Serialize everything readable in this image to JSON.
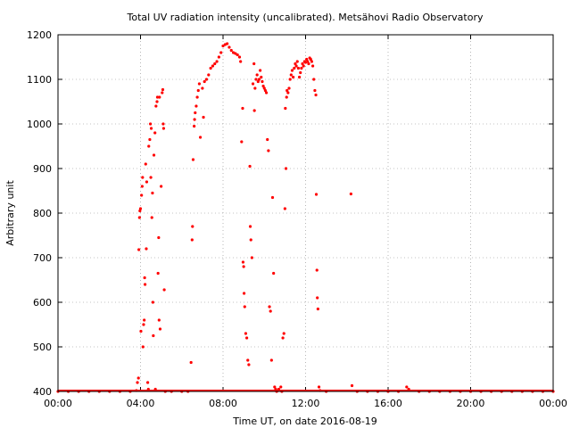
{
  "chart_data": {
    "type": "scatter",
    "title": "Total UV radiation intensity (uncalibrated). Metsähovi Radio Observatory",
    "xlabel": "Time UT, on date 2016-08-19",
    "ylabel": "Arbitrary unit",
    "xlim": [
      "00:00",
      "24:00"
    ],
    "ylim": [
      400,
      1200
    ],
    "x_ticks": [
      "00:00",
      "04:00",
      "08:00",
      "12:00",
      "16:00",
      "20:00",
      "00:00"
    ],
    "y_ticks": [
      "400",
      "500",
      "600",
      "700",
      "800",
      "900",
      "1000",
      "1100",
      "1200"
    ],
    "grid": true,
    "grid_style": "dotted",
    "marker_color": "#ff0000",
    "x_unit": "hours UT",
    "series": [
      {
        "values": [
          [
            0.0,
            400
          ],
          [
            0.5,
            400
          ],
          [
            1.0,
            400
          ],
          [
            1.5,
            400
          ],
          [
            2.0,
            400
          ],
          [
            2.5,
            400
          ],
          [
            3.0,
            400
          ],
          [
            3.5,
            400
          ],
          [
            3.8,
            402
          ],
          [
            3.85,
            420
          ],
          [
            3.9,
            430
          ],
          [
            3.92,
            718
          ],
          [
            3.95,
            790
          ],
          [
            3.97,
            805
          ],
          [
            4.0,
            810
          ],
          [
            4.02,
            535
          ],
          [
            4.05,
            840
          ],
          [
            4.08,
            860
          ],
          [
            4.1,
            880
          ],
          [
            4.12,
            500
          ],
          [
            4.15,
            550
          ],
          [
            4.18,
            560
          ],
          [
            4.2,
            655
          ],
          [
            4.22,
            640
          ],
          [
            4.25,
            910
          ],
          [
            4.28,
            720
          ],
          [
            4.3,
            870
          ],
          [
            4.35,
            420
          ],
          [
            4.38,
            405
          ],
          [
            4.4,
            950
          ],
          [
            4.45,
            965
          ],
          [
            4.48,
            1000
          ],
          [
            4.5,
            880
          ],
          [
            4.52,
            990
          ],
          [
            4.55,
            790
          ],
          [
            4.58,
            845
          ],
          [
            4.6,
            600
          ],
          [
            4.62,
            525
          ],
          [
            4.65,
            930
          ],
          [
            4.7,
            980
          ],
          [
            4.72,
            405
          ],
          [
            4.75,
            1040
          ],
          [
            4.8,
            1050
          ],
          [
            4.82,
            1060
          ],
          [
            4.85,
            665
          ],
          [
            4.88,
            745
          ],
          [
            4.9,
            560
          ],
          [
            4.92,
            1060
          ],
          [
            4.95,
            540
          ],
          [
            5.0,
            860
          ],
          [
            5.05,
            1070
          ],
          [
            5.08,
            1077
          ],
          [
            5.1,
            1000
          ],
          [
            5.12,
            990
          ],
          [
            5.15,
            628
          ],
          [
            5.2,
            400
          ],
          [
            5.5,
            400
          ],
          [
            6.0,
            400
          ],
          [
            6.3,
            400
          ],
          [
            6.45,
            465
          ],
          [
            6.5,
            740
          ],
          [
            6.52,
            770
          ],
          [
            6.55,
            920
          ],
          [
            6.6,
            995
          ],
          [
            6.62,
            1010
          ],
          [
            6.65,
            1025
          ],
          [
            6.7,
            1040
          ],
          [
            6.75,
            1060
          ],
          [
            6.8,
            1075
          ],
          [
            6.85,
            1090
          ],
          [
            6.9,
            970
          ],
          [
            7.0,
            1080
          ],
          [
            7.05,
            1015
          ],
          [
            7.1,
            1095
          ],
          [
            7.2,
            1100
          ],
          [
            7.3,
            1110
          ],
          [
            7.4,
            1125
          ],
          [
            7.5,
            1130
          ],
          [
            7.6,
            1135
          ],
          [
            7.7,
            1140
          ],
          [
            7.8,
            1150
          ],
          [
            7.9,
            1160
          ],
          [
            8.0,
            1175
          ],
          [
            8.1,
            1178
          ],
          [
            8.2,
            1180
          ],
          [
            8.3,
            1172
          ],
          [
            8.4,
            1165
          ],
          [
            8.5,
            1160
          ],
          [
            8.6,
            1158
          ],
          [
            8.7,
            1155
          ],
          [
            8.8,
            1150
          ],
          [
            8.85,
            1140
          ],
          [
            8.9,
            960
          ],
          [
            8.95,
            1035
          ],
          [
            8.97,
            690
          ],
          [
            9.0,
            680
          ],
          [
            9.02,
            620
          ],
          [
            9.05,
            590
          ],
          [
            9.1,
            530
          ],
          [
            9.15,
            520
          ],
          [
            9.2,
            470
          ],
          [
            9.25,
            460
          ],
          [
            9.3,
            905
          ],
          [
            9.32,
            770
          ],
          [
            9.35,
            740
          ],
          [
            9.4,
            700
          ],
          [
            9.45,
            1090
          ],
          [
            9.5,
            1135
          ],
          [
            9.52,
            1030
          ],
          [
            9.55,
            1080
          ],
          [
            9.6,
            1100
          ],
          [
            9.65,
            1110
          ],
          [
            9.7,
            1095
          ],
          [
            9.75,
            1100
          ],
          [
            9.8,
            1120
          ],
          [
            9.85,
            1105
          ],
          [
            9.9,
            1095
          ],
          [
            9.95,
            1085
          ],
          [
            10.0,
            1080
          ],
          [
            10.05,
            1075
          ],
          [
            10.1,
            1070
          ],
          [
            10.15,
            965
          ],
          [
            10.2,
            940
          ],
          [
            10.25,
            590
          ],
          [
            10.3,
            580
          ],
          [
            10.35,
            470
          ],
          [
            10.4,
            835
          ],
          [
            10.45,
            665
          ],
          [
            10.5,
            410
          ],
          [
            10.55,
            405
          ],
          [
            10.6,
            400
          ],
          [
            10.7,
            405
          ],
          [
            10.8,
            410
          ],
          [
            10.85,
            400
          ],
          [
            10.9,
            520
          ],
          [
            10.95,
            530
          ],
          [
            11.0,
            810
          ],
          [
            11.02,
            1035
          ],
          [
            11.05,
            900
          ],
          [
            11.08,
            1060
          ],
          [
            11.1,
            1075
          ],
          [
            11.15,
            1070
          ],
          [
            11.2,
            1080
          ],
          [
            11.25,
            1100
          ],
          [
            11.3,
            1110
          ],
          [
            11.35,
            1120
          ],
          [
            11.4,
            1105
          ],
          [
            11.45,
            1125
          ],
          [
            11.5,
            1135
          ],
          [
            11.55,
            1130
          ],
          [
            11.6,
            1140
          ],
          [
            11.65,
            1125
          ],
          [
            11.7,
            1105
          ],
          [
            11.75,
            1115
          ],
          [
            11.8,
            1125
          ],
          [
            11.85,
            1135
          ],
          [
            11.9,
            1130
          ],
          [
            11.95,
            1140
          ],
          [
            12.0,
            1138
          ],
          [
            12.05,
            1145
          ],
          [
            12.1,
            1140
          ],
          [
            12.15,
            1135
          ],
          [
            12.2,
            1148
          ],
          [
            12.25,
            1145
          ],
          [
            12.3,
            1140
          ],
          [
            12.35,
            1130
          ],
          [
            12.4,
            1100
          ],
          [
            12.45,
            1075
          ],
          [
            12.5,
            1065
          ],
          [
            12.52,
            842
          ],
          [
            12.55,
            672
          ],
          [
            12.57,
            610
          ],
          [
            12.6,
            585
          ],
          [
            12.65,
            410
          ],
          [
            12.7,
            402
          ],
          [
            13.0,
            400
          ],
          [
            14.2,
            843
          ],
          [
            14.25,
            413
          ],
          [
            14.5,
            400
          ],
          [
            15.0,
            400
          ],
          [
            15.5,
            400
          ],
          [
            16.0,
            400
          ],
          [
            16.5,
            400
          ],
          [
            16.9,
            410
          ],
          [
            17.0,
            405
          ],
          [
            17.5,
            400
          ],
          [
            18.0,
            400
          ],
          [
            18.5,
            400
          ],
          [
            19.0,
            400
          ],
          [
            19.5,
            400
          ],
          [
            20.0,
            400
          ],
          [
            20.5,
            400
          ],
          [
            21.0,
            400
          ],
          [
            21.5,
            400
          ],
          [
            22.0,
            400
          ],
          [
            22.5,
            400
          ],
          [
            23.0,
            400
          ],
          [
            23.5,
            400
          ],
          [
            24.0,
            400
          ]
        ]
      }
    ]
  }
}
